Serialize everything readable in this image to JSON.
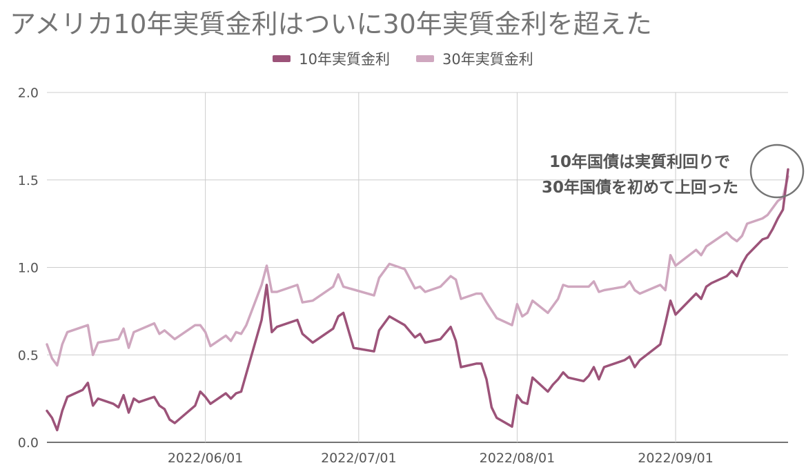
{
  "title": "アメリカ10年実質金利はついに30年実質金利を超えた",
  "legend": [
    {
      "name": "10年実質金利",
      "color": "#9c5379"
    },
    {
      "name": "30年実質金利",
      "color": "#cfa7bf"
    }
  ],
  "annotation": {
    "line1": "10年国債は実質利回りで",
    "line2": "30年国債を初めて上回った"
  },
  "chart_data": {
    "type": "line",
    "x_range": [
      "2022-05-01",
      "2022-09-23"
    ],
    "ylim": [
      0,
      2.0
    ],
    "y_ticks": [
      "0.0",
      "0.5",
      "1.0",
      "1.5",
      "2.0"
    ],
    "x_ticks": [
      "2022/06/01",
      "2022/07/01",
      "2022/08/01",
      "2022/09/01"
    ],
    "legend_position": "top",
    "grid": true,
    "series": [
      {
        "name": "10年実質金利",
        "color": "#9c5379",
        "points": [
          [
            "2022-05-01",
            0.18
          ],
          [
            "2022-05-02",
            0.14
          ],
          [
            "2022-05-03",
            0.07
          ],
          [
            "2022-05-04",
            0.18
          ],
          [
            "2022-05-05",
            0.26
          ],
          [
            "2022-05-08",
            0.3
          ],
          [
            "2022-05-09",
            0.34
          ],
          [
            "2022-05-10",
            0.21
          ],
          [
            "2022-05-11",
            0.25
          ],
          [
            "2022-05-14",
            0.22
          ],
          [
            "2022-05-15",
            0.2
          ],
          [
            "2022-05-16",
            0.27
          ],
          [
            "2022-05-17",
            0.17
          ],
          [
            "2022-05-18",
            0.25
          ],
          [
            "2022-05-19",
            0.23
          ],
          [
            "2022-05-22",
            0.26
          ],
          [
            "2022-05-23",
            0.21
          ],
          [
            "2022-05-24",
            0.19
          ],
          [
            "2022-05-25",
            0.13
          ],
          [
            "2022-05-26",
            0.11
          ],
          [
            "2022-05-30",
            0.21
          ],
          [
            "2022-05-31",
            0.29
          ],
          [
            "2022-06-01",
            0.26
          ],
          [
            "2022-06-02",
            0.22
          ],
          [
            "2022-06-05",
            0.28
          ],
          [
            "2022-06-06",
            0.25
          ],
          [
            "2022-06-07",
            0.28
          ],
          [
            "2022-06-08",
            0.29
          ],
          [
            "2022-06-12",
            0.7
          ],
          [
            "2022-06-13",
            0.9
          ],
          [
            "2022-06-14",
            0.63
          ],
          [
            "2022-06-15",
            0.66
          ],
          [
            "2022-06-19",
            0.7
          ],
          [
            "2022-06-20",
            0.62
          ],
          [
            "2022-06-22",
            0.57
          ],
          [
            "2022-06-26",
            0.65
          ],
          [
            "2022-06-27",
            0.72
          ],
          [
            "2022-06-28",
            0.74
          ],
          [
            "2022-06-30",
            0.54
          ],
          [
            "2022-07-04",
            0.52
          ],
          [
            "2022-07-05",
            0.64
          ],
          [
            "2022-07-07",
            0.72
          ],
          [
            "2022-07-10",
            0.67
          ],
          [
            "2022-07-12",
            0.6
          ],
          [
            "2022-07-13",
            0.62
          ],
          [
            "2022-07-14",
            0.57
          ],
          [
            "2022-07-17",
            0.59
          ],
          [
            "2022-07-19",
            0.66
          ],
          [
            "2022-07-20",
            0.58
          ],
          [
            "2022-07-21",
            0.43
          ],
          [
            "2022-07-24",
            0.45
          ],
          [
            "2022-07-25",
            0.45
          ],
          [
            "2022-07-26",
            0.36
          ],
          [
            "2022-07-27",
            0.2
          ],
          [
            "2022-07-28",
            0.14
          ],
          [
            "2022-07-31",
            0.09
          ],
          [
            "2022-08-01",
            0.27
          ],
          [
            "2022-08-02",
            0.23
          ],
          [
            "2022-08-03",
            0.22
          ],
          [
            "2022-08-04",
            0.37
          ],
          [
            "2022-08-07",
            0.29
          ],
          [
            "2022-08-08",
            0.33
          ],
          [
            "2022-08-09",
            0.36
          ],
          [
            "2022-08-10",
            0.4
          ],
          [
            "2022-08-11",
            0.37
          ],
          [
            "2022-08-14",
            0.35
          ],
          [
            "2022-08-15",
            0.38
          ],
          [
            "2022-08-16",
            0.43
          ],
          [
            "2022-08-17",
            0.36
          ],
          [
            "2022-08-18",
            0.43
          ],
          [
            "2022-08-22",
            0.47
          ],
          [
            "2022-08-23",
            0.49
          ],
          [
            "2022-08-24",
            0.43
          ],
          [
            "2022-08-25",
            0.47
          ],
          [
            "2022-08-29",
            0.56
          ],
          [
            "2022-08-30",
            0.68
          ],
          [
            "2022-08-31",
            0.81
          ],
          [
            "2022-09-01",
            0.73
          ],
          [
            "2022-09-05",
            0.85
          ],
          [
            "2022-09-06",
            0.82
          ],
          [
            "2022-09-07",
            0.89
          ],
          [
            "2022-09-08",
            0.91
          ],
          [
            "2022-09-11",
            0.95
          ],
          [
            "2022-09-12",
            0.98
          ],
          [
            "2022-09-13",
            0.95
          ],
          [
            "2022-09-14",
            1.02
          ],
          [
            "2022-09-15",
            1.07
          ],
          [
            "2022-09-18",
            1.16
          ],
          [
            "2022-09-19",
            1.17
          ],
          [
            "2022-09-20",
            1.22
          ],
          [
            "2022-09-21",
            1.28
          ],
          [
            "2022-09-22",
            1.33
          ],
          [
            "2022-09-23",
            1.56
          ]
        ]
      },
      {
        "name": "30年実質金利",
        "color": "#cfa7bf",
        "points": [
          [
            "2022-05-01",
            0.56
          ],
          [
            "2022-05-02",
            0.48
          ],
          [
            "2022-05-03",
            0.44
          ],
          [
            "2022-05-04",
            0.56
          ],
          [
            "2022-05-05",
            0.63
          ],
          [
            "2022-05-09",
            0.67
          ],
          [
            "2022-05-10",
            0.5
          ],
          [
            "2022-05-11",
            0.57
          ],
          [
            "2022-05-15",
            0.59
          ],
          [
            "2022-05-16",
            0.65
          ],
          [
            "2022-05-17",
            0.54
          ],
          [
            "2022-05-18",
            0.63
          ],
          [
            "2022-05-22",
            0.68
          ],
          [
            "2022-05-23",
            0.62
          ],
          [
            "2022-05-24",
            0.64
          ],
          [
            "2022-05-26",
            0.59
          ],
          [
            "2022-05-30",
            0.67
          ],
          [
            "2022-05-31",
            0.67
          ],
          [
            "2022-06-01",
            0.63
          ],
          [
            "2022-06-02",
            0.55
          ],
          [
            "2022-06-05",
            0.61
          ],
          [
            "2022-06-06",
            0.58
          ],
          [
            "2022-06-07",
            0.63
          ],
          [
            "2022-06-08",
            0.62
          ],
          [
            "2022-06-09",
            0.67
          ],
          [
            "2022-06-12",
            0.9
          ],
          [
            "2022-06-13",
            1.01
          ],
          [
            "2022-06-14",
            0.86
          ],
          [
            "2022-06-15",
            0.86
          ],
          [
            "2022-06-19",
            0.9
          ],
          [
            "2022-06-20",
            0.8
          ],
          [
            "2022-06-22",
            0.81
          ],
          [
            "2022-06-26",
            0.89
          ],
          [
            "2022-06-27",
            0.96
          ],
          [
            "2022-06-28",
            0.89
          ],
          [
            "2022-07-04",
            0.84
          ],
          [
            "2022-07-05",
            0.94
          ],
          [
            "2022-07-07",
            1.02
          ],
          [
            "2022-07-10",
            0.99
          ],
          [
            "2022-07-12",
            0.88
          ],
          [
            "2022-07-13",
            0.89
          ],
          [
            "2022-07-14",
            0.86
          ],
          [
            "2022-07-17",
            0.89
          ],
          [
            "2022-07-19",
            0.95
          ],
          [
            "2022-07-20",
            0.93
          ],
          [
            "2022-07-21",
            0.82
          ],
          [
            "2022-07-24",
            0.85
          ],
          [
            "2022-07-25",
            0.85
          ],
          [
            "2022-07-26",
            0.8
          ],
          [
            "2022-07-28",
            0.71
          ],
          [
            "2022-07-31",
            0.67
          ],
          [
            "2022-08-01",
            0.79
          ],
          [
            "2022-08-02",
            0.72
          ],
          [
            "2022-08-03",
            0.74
          ],
          [
            "2022-08-04",
            0.81
          ],
          [
            "2022-08-07",
            0.74
          ],
          [
            "2022-08-08",
            0.78
          ],
          [
            "2022-08-09",
            0.82
          ],
          [
            "2022-08-10",
            0.9
          ],
          [
            "2022-08-11",
            0.89
          ],
          [
            "2022-08-15",
            0.89
          ],
          [
            "2022-08-16",
            0.92
          ],
          [
            "2022-08-17",
            0.86
          ],
          [
            "2022-08-18",
            0.87
          ],
          [
            "2022-08-22",
            0.89
          ],
          [
            "2022-08-23",
            0.92
          ],
          [
            "2022-08-24",
            0.87
          ],
          [
            "2022-08-25",
            0.85
          ],
          [
            "2022-08-29",
            0.9
          ],
          [
            "2022-08-30",
            0.87
          ],
          [
            "2022-08-31",
            1.07
          ],
          [
            "2022-09-01",
            1.01
          ],
          [
            "2022-09-05",
            1.1
          ],
          [
            "2022-09-06",
            1.07
          ],
          [
            "2022-09-07",
            1.12
          ],
          [
            "2022-09-08",
            1.14
          ],
          [
            "2022-09-11",
            1.2
          ],
          [
            "2022-09-12",
            1.17
          ],
          [
            "2022-09-13",
            1.15
          ],
          [
            "2022-09-14",
            1.18
          ],
          [
            "2022-09-15",
            1.25
          ],
          [
            "2022-09-18",
            1.28
          ],
          [
            "2022-09-19",
            1.3
          ],
          [
            "2022-09-20",
            1.34
          ],
          [
            "2022-09-21",
            1.38
          ],
          [
            "2022-09-22",
            1.4
          ],
          [
            "2022-09-23",
            1.52
          ]
        ]
      }
    ]
  }
}
